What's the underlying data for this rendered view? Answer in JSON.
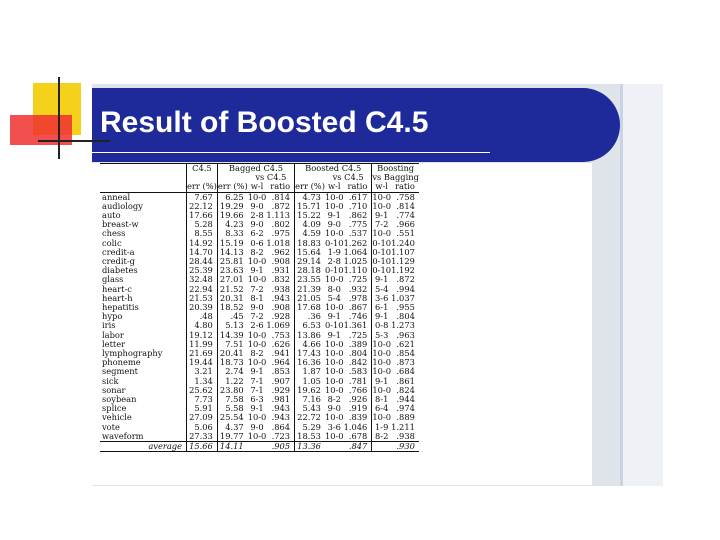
{
  "slide": {
    "title": "Result of Boosted C4.5"
  },
  "table": {
    "groups": [
      "C4.5",
      "Bagged C4.5",
      "vs C4.5",
      "Boosted C4.5",
      "vs C4.5",
      "Boosting",
      "vs Bagging"
    ],
    "headers": [
      "err (%)",
      "err (%)",
      "w-l",
      "ratio",
      "err (%)",
      "w-l",
      "ratio",
      "w-l",
      "ratio"
    ],
    "rows": [
      [
        "anneal",
        "7.67",
        "6.25",
        "10-0",
        ".814",
        "4.73",
        "10-0",
        ".617",
        "10-0",
        ".758"
      ],
      [
        "audiology",
        "22.12",
        "19.29",
        "9-0",
        ".872",
        "15.71",
        "10-0",
        ".710",
        "10-0",
        ".814"
      ],
      [
        "auto",
        "17.66",
        "19.66",
        "2-8",
        "1.113",
        "15.22",
        "9-1",
        ".862",
        "9-1",
        ".774"
      ],
      [
        "breast-w",
        "5.28",
        "4.23",
        "9-0",
        ".802",
        "4.09",
        "9-0",
        ".775",
        "7-2",
        ".966"
      ],
      [
        "chess",
        "8.55",
        "8.33",
        "6-2",
        ".975",
        "4.59",
        "10-0",
        ".537",
        "10-0",
        ".551"
      ],
      [
        "colic",
        "14.92",
        "15.19",
        "0-6",
        "1.018",
        "18.83",
        "0-10",
        "1.262",
        "0-10",
        "1.240"
      ],
      [
        "credit-a",
        "14.70",
        "14.13",
        "8-2",
        ".962",
        "15.64",
        "1-9",
        "1.064",
        "0-10",
        "1.107"
      ],
      [
        "credit-g",
        "28.44",
        "25.81",
        "10-0",
        ".908",
        "29.14",
        "2-8",
        "1.025",
        "0-10",
        "1.129"
      ],
      [
        "diabetes",
        "25.39",
        "23.63",
        "9-1",
        ".931",
        "28.18",
        "0-10",
        "1.110",
        "0-10",
        "1.192"
      ],
      [
        "glass",
        "32.48",
        "27.01",
        "10-0",
        ".832",
        "23.55",
        "10-0",
        ".725",
        "9-1",
        ".872"
      ],
      [
        "heart-c",
        "22.94",
        "21.52",
        "7-2",
        ".938",
        "21.39",
        "8-0",
        ".932",
        "5-4",
        ".994"
      ],
      [
        "heart-h",
        "21.53",
        "20.31",
        "8-1",
        ".943",
        "21.05",
        "5-4",
        ".978",
        "3-6",
        "1.037"
      ],
      [
        "hepatitis",
        "20.39",
        "18.52",
        "9-0",
        ".908",
        "17.68",
        "10-0",
        ".867",
        "6-1",
        ".955"
      ],
      [
        "hypo",
        ".48",
        ".45",
        "7-2",
        ".928",
        ".36",
        "9-1",
        ".746",
        "9-1",
        ".804"
      ],
      [
        "iris",
        "4.80",
        "5.13",
        "2-6",
        "1.069",
        "6.53",
        "0-10",
        "1.361",
        "0-8",
        "1.273"
      ],
      [
        "labor",
        "19.12",
        "14.39",
        "10-0",
        ".753",
        "13.86",
        "9-1",
        ".725",
        "5-3",
        ".963"
      ],
      [
        "letter",
        "11.99",
        "7.51",
        "10-0",
        ".626",
        "4.66",
        "10-0",
        ".389",
        "10-0",
        ".621"
      ],
      [
        "lymphography",
        "21.69",
        "20.41",
        "8-2",
        ".941",
        "17.43",
        "10-0",
        ".804",
        "10-0",
        ".854"
      ],
      [
        "phoneme",
        "19.44",
        "18.73",
        "10-0",
        ".964",
        "16.36",
        "10-0",
        ".842",
        "10-0",
        ".873"
      ],
      [
        "segment",
        "3.21",
        "2.74",
        "9-1",
        ".853",
        "1.87",
        "10-0",
        ".583",
        "10-0",
        ".684"
      ],
      [
        "sick",
        "1.34",
        "1.22",
        "7-1",
        ".907",
        "1.05",
        "10-0",
        ".781",
        "9-1",
        ".861"
      ],
      [
        "sonar",
        "25.62",
        "23.80",
        "7-1",
        ".929",
        "19.62",
        "10-0",
        ".766",
        "10-0",
        ".824"
      ],
      [
        "soybean",
        "7.73",
        "7.58",
        "6-3",
        ".981",
        "7.16",
        "8-2",
        ".926",
        "8-1",
        ".944"
      ],
      [
        "splice",
        "5.91",
        "5.58",
        "9-1",
        ".943",
        "5.43",
        "9-0",
        ".919",
        "6-4",
        ".974"
      ],
      [
        "vehicle",
        "27.09",
        "25.54",
        "10-0",
        ".943",
        "22.72",
        "10-0",
        ".839",
        "10-0",
        ".889"
      ],
      [
        "vote",
        "5.06",
        "4.37",
        "9-0",
        ".864",
        "5.29",
        "3-6",
        "1.046",
        "1-9",
        "1.211"
      ],
      [
        "waveform",
        "27.33",
        "19.77",
        "10-0",
        ".723",
        "18.53",
        "10-0",
        ".678",
        "8-2",
        ".938"
      ]
    ],
    "average": [
      "average",
      "15.66",
      "14.11",
      "",
      ".905",
      "13.36",
      "",
      ".847",
      "",
      ".930"
    ]
  }
}
